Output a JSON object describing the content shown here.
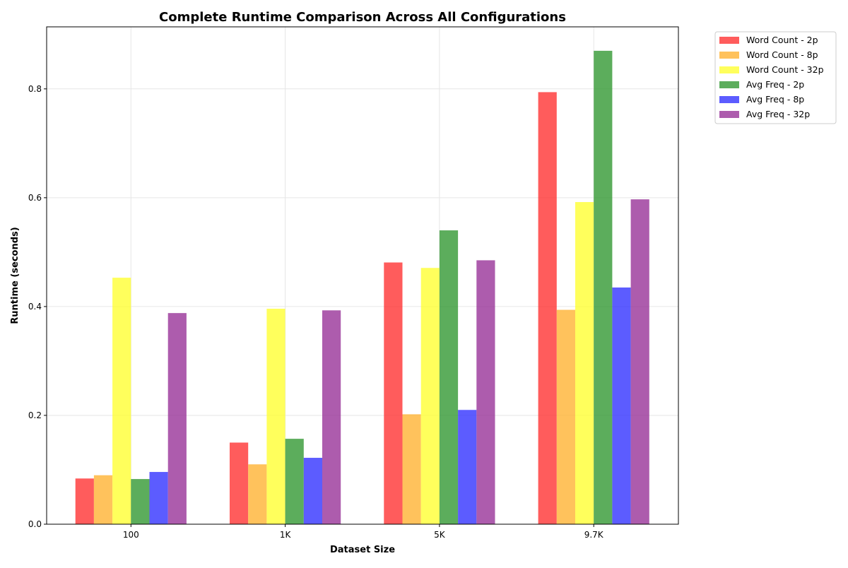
{
  "chart_data": {
    "type": "bar",
    "title": "Complete Runtime Comparison Across All Configurations",
    "xlabel": "Dataset Size",
    "ylabel": "Runtime (seconds)",
    "categories": [
      "100",
      "1K",
      "5K",
      "9.7K"
    ],
    "ylim": [
      0,
      0.914
    ],
    "yticks": [
      0.0,
      0.2,
      0.4,
      0.6,
      0.8
    ],
    "ytick_labels": [
      "0.0",
      "0.2",
      "0.4",
      "0.6",
      "0.8"
    ],
    "grid": true,
    "legend_position": "outside-top-right",
    "series": [
      {
        "name": "Word Count - 2p",
        "color": "#ff3333",
        "values": [
          0.084,
          0.15,
          0.481,
          0.794
        ]
      },
      {
        "name": "Word Count - 8p",
        "color": "#ffb333",
        "values": [
          0.09,
          0.11,
          0.202,
          0.394
        ]
      },
      {
        "name": "Word Count - 32p",
        "color": "#ffff33",
        "values": [
          0.453,
          0.396,
          0.471,
          0.592
        ]
      },
      {
        "name": "Avg Freq - 2p",
        "color": "#339933",
        "values": [
          0.083,
          0.157,
          0.54,
          0.87
        ]
      },
      {
        "name": "Avg Freq - 8p",
        "color": "#3333ff",
        "values": [
          0.096,
          0.122,
          0.21,
          0.435
        ]
      },
      {
        "name": "Avg Freq - 32p",
        "color": "#993399",
        "values": [
          0.388,
          0.393,
          0.485,
          0.597
        ]
      }
    ]
  }
}
